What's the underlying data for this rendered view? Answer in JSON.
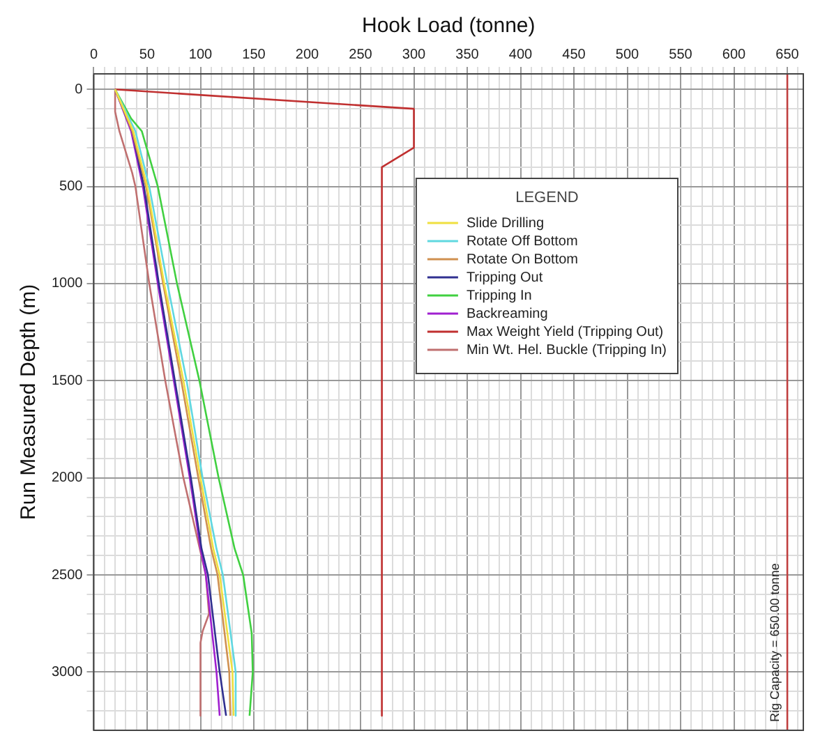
{
  "chart_data": {
    "type": "line",
    "xlabel": "Hook Load (tonne)",
    "ylabel": "Run Measured Depth (m)",
    "legend_title": "LEGEND",
    "legend": "top right",
    "grid": true,
    "xlim": [
      0,
      665
    ],
    "ylim": [
      3300,
      -80
    ],
    "xticks": [
      0,
      {
        "value": 10,
        "label": null
      },
      {
        "value": 20,
        "label": null
      },
      {
        "value": 30,
        "label": null
      },
      {
        "value": 40,
        "label": null
      },
      50,
      {
        "value": 60,
        "label": null
      },
      {
        "value": 70,
        "label": null
      },
      {
        "value": 80,
        "label": null
      },
      {
        "value": 90,
        "label": null
      },
      100,
      {
        "value": 110,
        "label": null
      },
      {
        "value": 120,
        "label": null
      },
      {
        "value": 130,
        "label": null
      },
      {
        "value": 140,
        "label": null
      },
      150,
      {
        "value": 160,
        "label": null
      },
      {
        "value": 170,
        "label": null
      },
      {
        "value": 180,
        "label": null
      },
      {
        "value": 190,
        "label": null
      },
      200,
      {
        "value": 210,
        "label": null
      },
      {
        "value": 220,
        "label": null
      },
      {
        "value": 230,
        "label": null
      },
      {
        "value": 240,
        "label": null
      },
      250,
      {
        "value": 260,
        "label": null
      },
      {
        "value": 270,
        "label": null
      },
      {
        "value": 280,
        "label": null
      },
      {
        "value": 290,
        "label": null
      },
      300,
      {
        "value": 310,
        "label": null
      },
      {
        "value": 320,
        "label": null
      },
      {
        "value": 330,
        "label": null
      },
      {
        "value": 340,
        "label": null
      },
      350,
      {
        "value": 360,
        "label": null
      },
      {
        "value": 370,
        "label": null
      },
      {
        "value": 380,
        "label": null
      },
      {
        "value": 390,
        "label": null
      },
      400,
      {
        "value": 410,
        "label": null
      },
      {
        "value": 420,
        "label": null
      },
      {
        "value": 430,
        "label": null
      },
      {
        "value": 440,
        "label": null
      },
      450,
      {
        "value": 460,
        "label": null
      },
      {
        "value": 470,
        "label": null
      },
      {
        "value": 480,
        "label": null
      },
      {
        "value": 490,
        "label": null
      },
      500,
      {
        "value": 510,
        "label": null
      },
      {
        "value": 520,
        "label": null
      },
      {
        "value": 530,
        "label": null
      },
      {
        "value": 540,
        "label": null
      },
      550,
      {
        "value": 560,
        "label": null
      },
      {
        "value": 570,
        "label": null
      },
      {
        "value": 580,
        "label": null
      },
      {
        "value": 590,
        "label": null
      },
      600,
      {
        "value": 610,
        "label": null
      },
      {
        "value": 620,
        "label": null
      },
      {
        "value": 630,
        "label": null
      },
      {
        "value": 640,
        "label": null
      },
      650,
      {
        "value": 660,
        "label": null
      }
    ],
    "yticks": [
      0,
      {
        "value": 100,
        "label": null
      },
      {
        "value": 200,
        "label": null
      },
      {
        "value": 300,
        "label": null
      },
      {
        "value": 400,
        "label": null
      },
      500,
      {
        "value": 600,
        "label": null
      },
      {
        "value": 700,
        "label": null
      },
      {
        "value": 800,
        "label": null
      },
      {
        "value": 900,
        "label": null
      },
      1000,
      {
        "value": 1100,
        "label": null
      },
      {
        "value": 1200,
        "label": null
      },
      {
        "value": 1300,
        "label": null
      },
      {
        "value": 1400,
        "label": null
      },
      1500,
      {
        "value": 1600,
        "label": null
      },
      {
        "value": 1700,
        "label": null
      },
      {
        "value": 1800,
        "label": null
      },
      {
        "value": 1900,
        "label": null
      },
      2000,
      {
        "value": 2100,
        "label": null
      },
      {
        "value": 2200,
        "label": null
      },
      {
        "value": 2300,
        "label": null
      },
      {
        "value": 2400,
        "label": null
      },
      2500,
      {
        "value": 2600,
        "label": null
      },
      {
        "value": 2700,
        "label": null
      },
      {
        "value": 2800,
        "label": null
      },
      {
        "value": 2900,
        "label": null
      },
      3000,
      {
        "value": 3100,
        "label": null
      },
      {
        "value": 3200,
        "label": null
      }
    ],
    "ref_lines": [
      {
        "axis": "x",
        "value": 650,
        "label": "Rig Capacity = 650.00 tonne",
        "color": "#c04040"
      }
    ],
    "series": [
      {
        "name": "Slide Drilling",
        "color": "#f0e040",
        "x": [
          20,
          37,
          50,
          66,
          84,
          100,
          112,
          118,
          130,
          131
        ],
        "values": [
          0,
          215,
          500,
          1000,
          1500,
          2000,
          2365,
          2500,
          3000,
          3225
        ]
      },
      {
        "name": "Rotate Off Bottom",
        "color": "#60d8e0",
        "x": [
          20,
          39,
          52,
          69,
          87,
          102,
          115,
          121,
          133,
          133
        ],
        "values": [
          0,
          215,
          500,
          1000,
          1500,
          2000,
          2365,
          2500,
          3000,
          3225
        ]
      },
      {
        "name": "Rotate On Bottom",
        "color": "#d09050",
        "x": [
          20,
          36,
          49,
          65,
          82,
          98,
          110,
          116,
          127,
          128
        ],
        "values": [
          0,
          215,
          500,
          1000,
          1500,
          2000,
          2365,
          2500,
          3000,
          3225
        ]
      },
      {
        "name": "Tripping Out",
        "color": "#303090",
        "x": [
          20,
          36,
          47,
          61,
          76,
          91,
          101,
          107,
          118,
          124
        ],
        "values": [
          0,
          215,
          500,
          1000,
          1500,
          2000,
          2365,
          2500,
          3000,
          3225
        ]
      },
      {
        "name": "Tripping In",
        "color": "#40d040",
        "x": [
          20,
          35,
          45,
          60,
          78,
          99,
          117,
          132,
          140,
          148,
          149,
          146
        ],
        "values": [
          0,
          150,
          215,
          500,
          1000,
          1500,
          2000,
          2365,
          2500,
          2800,
          3000,
          3225
        ]
      },
      {
        "name": "Backreaming",
        "color": "#a020d0",
        "x": [
          20,
          35,
          46,
          60,
          75,
          90,
          100,
          105,
          115,
          118
        ],
        "values": [
          0,
          215,
          500,
          1000,
          1500,
          2000,
          2365,
          2500,
          3000,
          3225
        ]
      },
      {
        "name": "Max Weight Yield (Tripping Out)",
        "color": "#c03030",
        "x": [
          20,
          300,
          300,
          270,
          270
        ],
        "values": [
          0,
          100,
          300,
          400,
          3225
        ]
      },
      {
        "name": "Min Wt. Hel. Buckle (Tripping In)",
        "color": "#c07070",
        "x": [
          20,
          20,
          24,
          36,
          39,
          52,
          67,
          84,
          105,
          108,
          102,
          100,
          100
        ],
        "values": [
          0,
          115,
          215,
          430,
          500,
          1000,
          1500,
          2000,
          2500,
          2700,
          2790,
          2850,
          3225
        ]
      }
    ]
  }
}
